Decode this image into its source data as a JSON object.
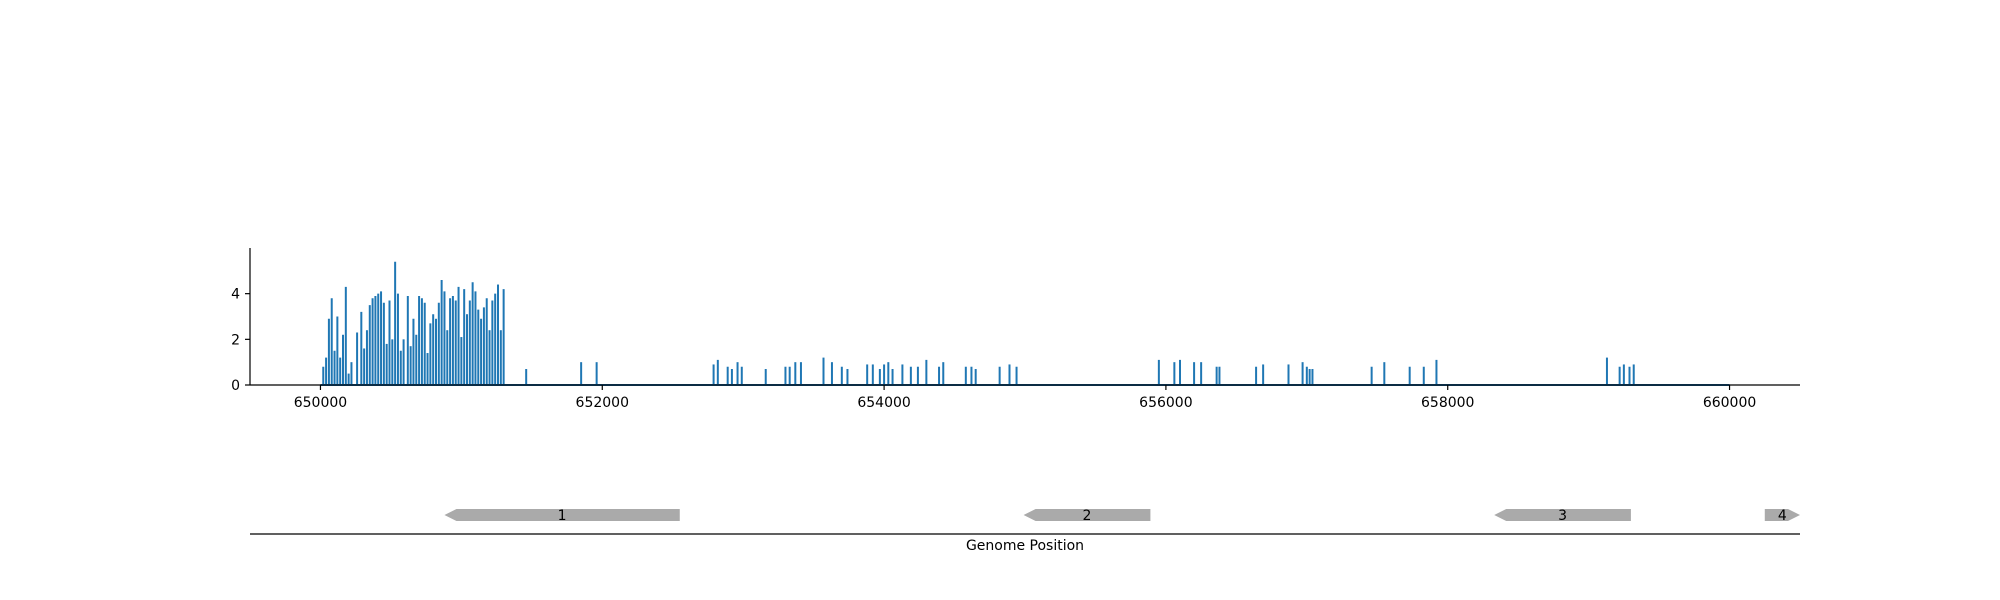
{
  "chart_data": [
    {
      "type": "bar",
      "title": "",
      "xlabel": "",
      "ylabel": "",
      "xlim": [
        649500,
        660500
      ],
      "ylim": [
        0,
        6
      ],
      "x_ticks": [
        "650000",
        "652000",
        "654000",
        "656000",
        "658000",
        "660000"
      ],
      "y_ticks": [
        "0",
        "2",
        "4"
      ],
      "grid": false,
      "legend": "none",
      "color": "#1f77b4",
      "series": [
        {
          "x": [
            650020,
            650040,
            650060,
            650080,
            650100,
            650120,
            650140,
            650160,
            650180,
            650200,
            650220,
            650260,
            650290,
            650310,
            650330,
            650350,
            650370,
            650390,
            650410,
            650430,
            650450,
            650470,
            650490,
            650510,
            650530,
            650550,
            650570,
            650590,
            650620,
            650640,
            650660,
            650680,
            650700,
            650720,
            650740,
            650760,
            650780,
            650800,
            650820,
            650840,
            650860,
            650880,
            650900,
            650920,
            650940,
            650960,
            650980,
            651000,
            651020,
            651040,
            651060,
            651080,
            651100,
            651120,
            651140,
            651160,
            651180,
            651200,
            651220,
            651240,
            651260,
            651280,
            651300,
            651460,
            651850,
            651960,
            652790,
            652820,
            652890,
            652920,
            652960,
            652990,
            653160,
            653300,
            653330,
            653370,
            653410,
            653570,
            653630,
            653700,
            653740,
            653880,
            653920,
            653970,
            654000,
            654030,
            654060,
            654130,
            654190,
            654240,
            654300,
            654390,
            654420,
            654580,
            654620,
            654650,
            654820,
            654890,
            654940,
            655950,
            656060,
            656100,
            656200,
            656250,
            656360,
            656380,
            656640,
            656690,
            656870,
            656970,
            657000,
            657020,
            657040,
            657460,
            657550,
            657730,
            657830,
            657920,
            659130,
            659220,
            659250,
            659290,
            659320
          ],
          "values": [
            0.8,
            1.2,
            2.9,
            3.8,
            1.5,
            3.0,
            1.2,
            2.2,
            4.3,
            0.5,
            1.0,
            2.3,
            3.2,
            1.6,
            2.4,
            3.5,
            3.8,
            3.9,
            4.0,
            4.1,
            3.6,
            1.8,
            3.7,
            2.0,
            5.4,
            4.0,
            1.5,
            2.0,
            3.9,
            1.7,
            2.9,
            2.2,
            3.9,
            3.8,
            3.6,
            1.4,
            2.7,
            3.1,
            2.9,
            3.6,
            4.6,
            4.1,
            2.4,
            3.8,
            3.9,
            3.7,
            4.3,
            2.1,
            4.2,
            3.1,
            3.7,
            4.5,
            4.1,
            3.3,
            2.9,
            3.4,
            3.8,
            2.4,
            3.7,
            4.0,
            4.4,
            2.4,
            4.2,
            0.7,
            1.0,
            1.0,
            0.9,
            1.1,
            0.8,
            0.7,
            1.0,
            0.8,
            0.7,
            0.8,
            0.8,
            1.0,
            1.0,
            1.2,
            1.0,
            0.8,
            0.7,
            0.9,
            0.9,
            0.7,
            0.9,
            1.0,
            0.7,
            0.9,
            0.8,
            0.8,
            1.1,
            0.8,
            1.0,
            0.8,
            0.8,
            0.7,
            0.8,
            0.9,
            0.8,
            1.1,
            1.0,
            1.1,
            1.0,
            1.0,
            0.8,
            0.8,
            0.8,
            0.9,
            0.9,
            1.0,
            0.8,
            0.7,
            0.7,
            0.8,
            1.0,
            0.8,
            0.8,
            1.1,
            1.2,
            0.8,
            0.9,
            0.8,
            0.9
          ]
        }
      ]
    },
    {
      "type": "gene-track",
      "xlabel": "Genome Position",
      "xlim": [
        649500,
        660500
      ],
      "genes": [
        {
          "label": "1",
          "start": 650880,
          "end": 652550,
          "strand": "-",
          "color": "#aaaaaa"
        },
        {
          "label": "2",
          "start": 654990,
          "end": 655890,
          "strand": "-",
          "color": "#aaaaaa"
        },
        {
          "label": "3",
          "start": 658330,
          "end": 659300,
          "strand": "-",
          "color": "#aaaaaa"
        },
        {
          "label": "4",
          "start": 660250,
          "end": 660500,
          "strand": "+",
          "color": "#aaaaaa"
        }
      ]
    }
  ]
}
